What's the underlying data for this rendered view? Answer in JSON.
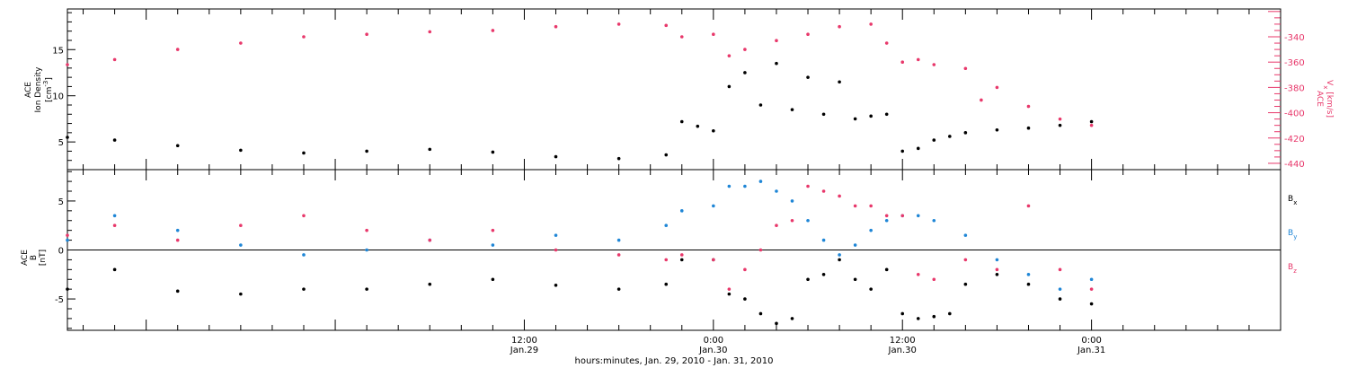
{
  "colors": {
    "black_series": "#000000",
    "pink_series": "#e8386b",
    "blue_series": "#1f86d6",
    "axis": "#000000"
  },
  "x_axis": {
    "label": "hours:minutes, Jan. 29, 2010 - Jan. 31, 2010",
    "range_hours": [
      -17,
      60
    ],
    "major_ticks": [
      {
        "h": 12,
        "time": "12:00",
        "date": "Jan.29"
      },
      {
        "h": 24,
        "time": "0:00",
        "date": "Jan.30"
      },
      {
        "h": 36,
        "time": "12:00",
        "date": "Jan.30"
      },
      {
        "h": 48,
        "time": "0:00",
        "date": "Jan.31"
      }
    ]
  },
  "panel_top": {
    "left_label_lines": [
      "ACE",
      "Ion Density"
    ],
    "left_unit_base": "[cm",
    "left_unit_sup": "-3",
    "left_unit_close": "]",
    "right_label_top": "ACE",
    "right_label_main": "V",
    "right_label_sub": "x",
    "right_label_unit": " [km/s]",
    "ylim_left": [
      2,
      19.4
    ],
    "ylim_right": [
      -445,
      -318
    ],
    "left_ticks": [
      "5",
      "10",
      "15"
    ],
    "right_ticks": [
      "-340",
      "-360",
      "-380",
      "-400",
      "-420",
      "-440"
    ]
  },
  "panel_bottom": {
    "left_label_lines": [
      "ACE",
      "B"
    ],
    "left_unit": "[nT]",
    "ylim": [
      -8.2,
      8.2
    ],
    "ticks": [
      "5",
      "0",
      "-5"
    ],
    "legend": [
      {
        "base": "B",
        "sub": "x",
        "color": "#000000"
      },
      {
        "base": "B",
        "sub": "y",
        "color": "#1f86d6"
      },
      {
        "base": "B",
        "sub": "z",
        "color": "#e8386b"
      }
    ]
  },
  "chart_data": [
    {
      "type": "scatter",
      "title": "",
      "xlabel": "hours:minutes, Jan. 29, 2010 - Jan. 31, 2010",
      "ylabel": "ACE Ion Density [cm-3]",
      "x_unit": "hours since 0:00 Jan.29",
      "series": [
        {
          "name": "Ion Density",
          "color": "#000000",
          "x": [
            -17,
            -14,
            -10,
            -6,
            -2,
            2,
            6,
            10,
            14,
            18,
            21,
            22,
            23,
            24,
            25,
            26,
            27,
            28,
            29,
            30,
            31,
            32,
            33,
            34,
            35,
            36,
            37,
            38,
            39,
            40,
            42,
            44,
            46,
            48
          ],
          "y": [
            5.5,
            5.2,
            4.6,
            4.1,
            3.8,
            4.0,
            4.2,
            3.9,
            3.4,
            3.2,
            3.6,
            7.2,
            6.7,
            6.2,
            11.0,
            12.5,
            9.0,
            13.5,
            8.5,
            12.0,
            8.0,
            11.5,
            7.5,
            7.8,
            8.0,
            4.0,
            4.3,
            5.2,
            5.6,
            6.0,
            6.3,
            6.5,
            6.8,
            7.2
          ]
        }
      ]
    },
    {
      "type": "scatter",
      "title": "",
      "ylabel": "ACE Vx [km/s]",
      "x_unit": "hours since 0:00 Jan.29",
      "series": [
        {
          "name": "Vx",
          "color": "#e8386b",
          "x": [
            -17,
            -14,
            -10,
            -6,
            -2,
            2,
            6,
            10,
            14,
            18,
            21,
            22,
            24,
            25,
            26,
            28,
            30,
            32,
            34,
            35,
            36,
            37,
            38,
            40,
            41,
            42,
            44,
            46,
            48
          ],
          "y": [
            -362,
            -358,
            -350,
            -345,
            -340,
            -338,
            -336,
            -335,
            -332,
            -330,
            -331,
            -340,
            -338,
            -355,
            -350,
            -343,
            -338,
            -332,
            -330,
            -345,
            -360,
            -358,
            -362,
            -365,
            -390,
            -380,
            -395,
            -405,
            -410
          ]
        }
      ]
    },
    {
      "type": "scatter",
      "title": "",
      "ylabel": "ACE B [nT]",
      "x_unit": "hours since 0:00 Jan.29",
      "series": [
        {
          "name": "Bx",
          "color": "#000000",
          "x": [
            -17,
            -14,
            -10,
            -6,
            -2,
            2,
            6,
            10,
            14,
            18,
            21,
            22,
            24,
            25,
            26,
            27,
            28,
            29,
            30,
            31,
            32,
            33,
            34,
            35,
            36,
            37,
            38,
            39,
            40,
            42,
            44,
            46,
            48
          ],
          "y": [
            -4.0,
            -2.0,
            -4.2,
            -4.5,
            -4.0,
            -4.0,
            -3.5,
            -3.0,
            -3.6,
            -4.0,
            -3.5,
            -1.0,
            -1.0,
            -4.5,
            -5.0,
            -6.5,
            -7.5,
            -7.0,
            -3.0,
            -2.5,
            -1.0,
            -3.0,
            -4.0,
            -2.0,
            -6.5,
            -7.0,
            -6.8,
            -6.5,
            -3.5,
            -2.5,
            -3.5,
            -5.0,
            -5.5
          ]
        },
        {
          "name": "By",
          "color": "#1f86d6",
          "x": [
            -17,
            -14,
            -10,
            -6,
            -2,
            2,
            6,
            10,
            14,
            18,
            21,
            22,
            24,
            25,
            26,
            27,
            28,
            29,
            30,
            31,
            32,
            33,
            34,
            35,
            36,
            37,
            38,
            40,
            42,
            44,
            46,
            48
          ],
          "y": [
            1.0,
            3.5,
            2.0,
            0.5,
            -0.5,
            0.0,
            1.0,
            0.5,
            1.5,
            1.0,
            2.5,
            4.0,
            4.5,
            6.5,
            6.5,
            7.0,
            6.0,
            5.0,
            3.0,
            1.0,
            -0.5,
            0.5,
            2.0,
            3.0,
            3.5,
            3.5,
            3.0,
            1.5,
            -1.0,
            -2.5,
            -4.0,
            -3.0
          ]
        },
        {
          "name": "Bz",
          "color": "#e8386b",
          "x": [
            -17,
            -14,
            -10,
            -6,
            -2,
            2,
            6,
            10,
            14,
            18,
            21,
            22,
            24,
            25,
            26,
            27,
            28,
            29,
            30,
            31,
            32,
            33,
            34,
            35,
            36,
            37,
            38,
            40,
            42,
            44,
            46,
            48
          ],
          "y": [
            1.5,
            2.5,
            1.0,
            2.5,
            3.5,
            2.0,
            1.0,
            2.0,
            0.0,
            -0.5,
            -1.0,
            -0.5,
            -1.0,
            -4.0,
            -2.0,
            0.0,
            2.5,
            3.0,
            6.5,
            6.0,
            5.5,
            4.5,
            4.5,
            3.5,
            3.5,
            -2.5,
            -3.0,
            -1.0,
            -2.0,
            4.5,
            -2.0,
            -4.0
          ]
        }
      ]
    }
  ]
}
